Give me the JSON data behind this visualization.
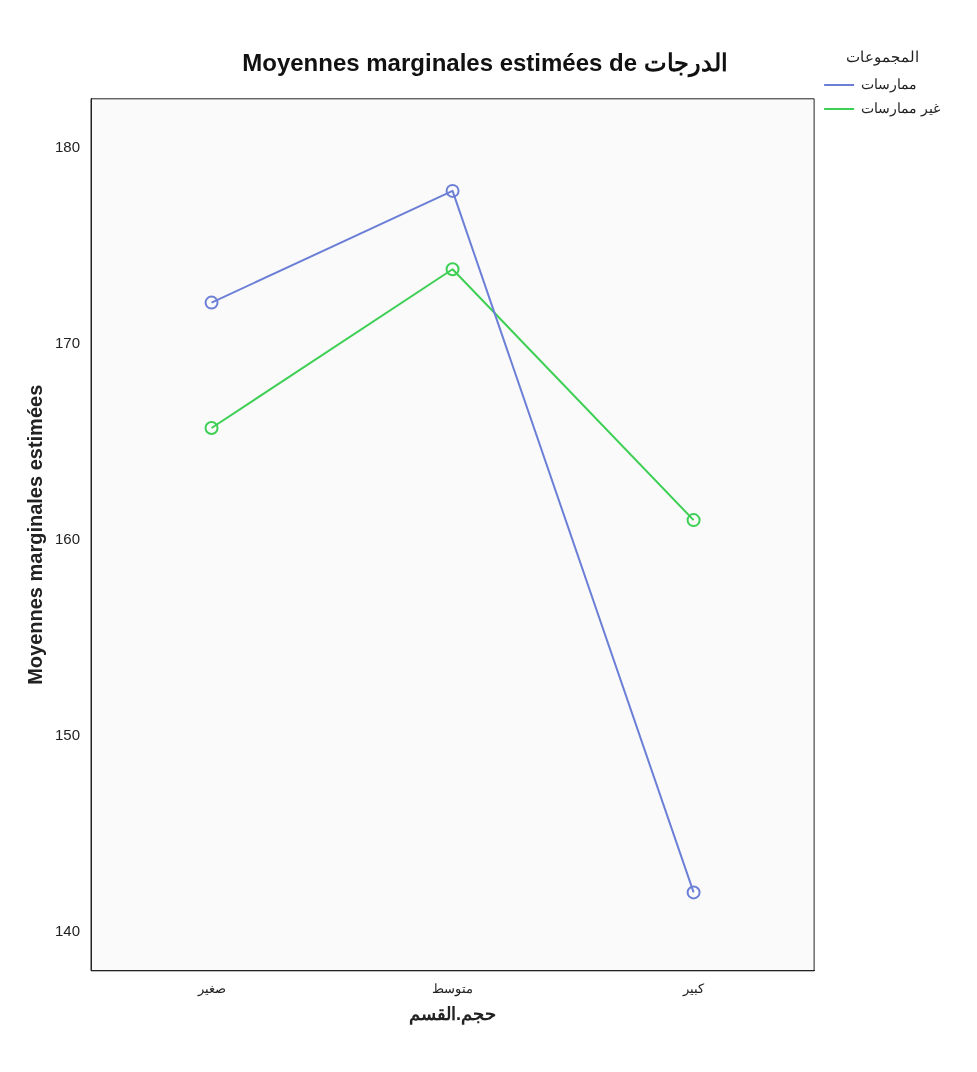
{
  "chart_data": {
    "type": "line",
    "title": "Moyennes marginales estimées de الدرجات",
    "xlabel": "حجم.القسم",
    "ylabel": "Moyennes marginales estimées",
    "legend_title": "المجموعات",
    "categories": [
      "صغير",
      "متوسط",
      "كبير"
    ],
    "series": [
      {
        "name": "ممارسات",
        "color": "#6b7fd7",
        "values": [
          172.1,
          177.8,
          142.0
        ]
      },
      {
        "name": "غير ممارسات",
        "color": "#3ecf55",
        "values": [
          165.7,
          173.8,
          161.0
        ]
      }
    ],
    "ylim": [
      138,
      182.5
    ],
    "yticks": [
      140,
      150,
      160,
      170,
      180
    ],
    "marker": "circle",
    "legend": "top right",
    "grid": false
  }
}
